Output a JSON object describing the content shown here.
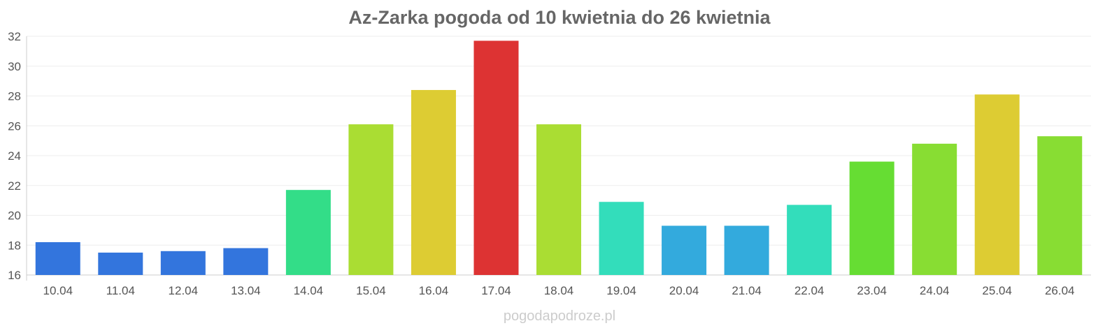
{
  "chart_data": {
    "type": "bar",
    "title": "Az-Zarka pogoda od 10 kwietnia do 26 kwietnia",
    "xlabel": "",
    "ylabel": "",
    "ylim": [
      16,
      32
    ],
    "yticks": [
      16,
      18,
      20,
      22,
      24,
      26,
      28,
      30,
      32
    ],
    "grid": true,
    "categories": [
      "10.04",
      "11.04",
      "12.04",
      "13.04",
      "14.04",
      "15.04",
      "16.04",
      "17.04",
      "18.04",
      "19.04",
      "20.04",
      "21.04",
      "22.04",
      "23.04",
      "24.04",
      "25.04",
      "26.04"
    ],
    "values": [
      18.2,
      17.5,
      17.6,
      17.8,
      21.7,
      26.1,
      28.4,
      31.7,
      26.1,
      20.9,
      19.3,
      19.3,
      20.7,
      23.6,
      24.8,
      28.1,
      25.3
    ],
    "colors": [
      "#3375dd",
      "#3375dd",
      "#3375dd",
      "#3375dd",
      "#33dd88",
      "#aadd33",
      "#ddcc33",
      "#dd3333",
      "#aadd33",
      "#33ddbb",
      "#33aadd",
      "#33aadd",
      "#33ddbb",
      "#66dd33",
      "#88dd33",
      "#ddcc33",
      "#88dd33"
    ]
  },
  "watermark": "pogodapodroze.pl"
}
